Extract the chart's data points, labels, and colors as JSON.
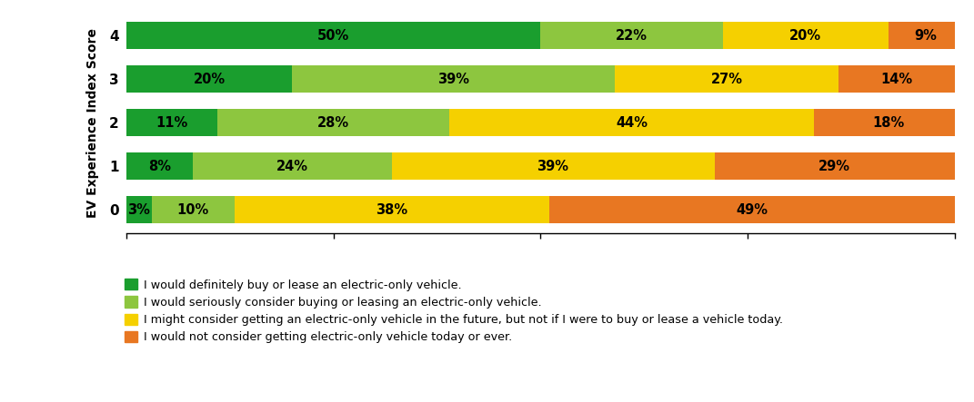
{
  "categories": [
    0,
    1,
    2,
    3,
    4
  ],
  "series": [
    {
      "label": "I would definitely buy or lease an electric-only vehicle.",
      "values": [
        3,
        8,
        11,
        20,
        50
      ],
      "color": "#1a9e2e"
    },
    {
      "label": "I would seriously consider buying or leasing an electric-only vehicle.",
      "values": [
        10,
        24,
        28,
        39,
        22
      ],
      "color": "#8dc63f"
    },
    {
      "label": "I might consider getting an electric-only vehicle in the future, but not if I were to buy or lease a vehicle today.",
      "values": [
        38,
        39,
        44,
        27,
        20
      ],
      "color": "#f5d000"
    },
    {
      "label": "I would not consider getting electric-only vehicle today or ever.",
      "values": [
        49,
        29,
        18,
        14,
        9
      ],
      "color": "#e87722"
    }
  ],
  "ylabel": "EV Experience Index Score",
  "bar_height": 0.62,
  "xlim": [
    0,
    100
  ],
  "background_color": "#ffffff",
  "legend_fontsize": 9.2,
  "label_fontsize": 10.5
}
